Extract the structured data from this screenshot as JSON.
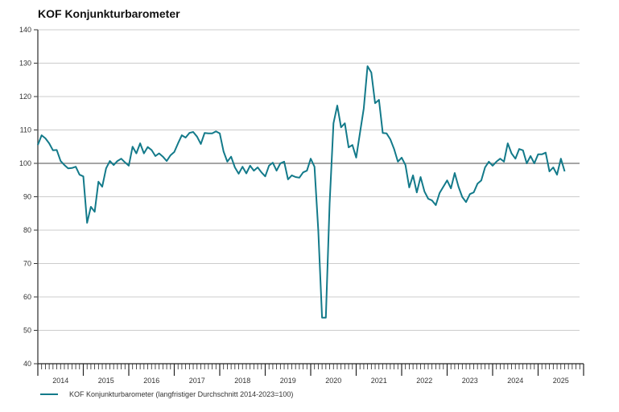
{
  "chart_data": {
    "type": "line",
    "title": "KOF Konjunkturbarometer",
    "xlabel": "",
    "ylabel": "",
    "ylim": [
      40,
      140
    ],
    "yticks": [
      40,
      50,
      60,
      70,
      80,
      90,
      100,
      110,
      120,
      130,
      140
    ],
    "xticks": [
      "2014",
      "2015",
      "2016",
      "2017",
      "2018",
      "2019",
      "2020",
      "2021",
      "2022",
      "2023",
      "2024",
      "2025"
    ],
    "x_start": "2014-01",
    "x_frequency": "monthly",
    "reference_line": 100,
    "grid": true,
    "legend_position": "bottom-left",
    "series": [
      {
        "name": "KOF Konjunkturbarometer (langfristiger Durchschnitt 2014-2023=100)",
        "color": "#137a8a",
        "values": [
          105.5,
          108.4,
          107.5,
          106,
          103.9,
          104,
          100.7,
          99.5,
          98.5,
          98.6,
          99,
          96.6,
          96.1,
          82.2,
          87,
          85.5,
          94.5,
          93,
          98.5,
          100.7,
          99.5,
          100.7,
          101.4,
          100.3,
          99.3,
          105,
          103,
          106,
          103,
          104.9,
          104,
          102.2,
          103,
          102,
          100.7,
          102.4,
          103.4,
          106,
          108.4,
          107.7,
          109.1,
          109.4,
          108,
          105.8,
          109.1,
          109,
          109,
          109.6,
          109,
          103.6,
          100.5,
          102,
          98.8,
          96.9,
          99,
          97,
          99.3,
          97.8,
          98.8,
          97.3,
          96.1,
          99.3,
          100.2,
          97.8,
          100,
          100.5,
          95.2,
          96.4,
          95.9,
          95.7,
          97.3,
          97.8,
          101.4,
          99,
          80,
          53.8,
          53.8,
          88,
          112,
          117.3,
          110.8,
          112,
          104.8,
          105.5,
          101.7,
          109.1,
          116.4,
          129.1,
          127.2,
          118,
          119,
          109.1,
          109,
          107.2,
          104.3,
          100.5,
          101.7,
          99.5,
          92.8,
          96.4,
          91.3,
          95.9,
          91.6,
          89.4,
          88.9,
          87.5,
          91.1,
          93,
          94.9,
          92.5,
          97.1,
          93,
          89.9,
          88.4,
          90.8,
          91.3,
          93.9,
          94.9,
          98.8,
          100.5,
          99.3,
          100.5,
          101.4,
          100.5,
          106,
          103,
          101.4,
          104.3,
          103.9,
          100,
          102.2,
          100,
          102.7,
          102.7,
          103.2,
          97.6,
          98.8,
          96.6,
          101.4,
          97.6
        ]
      }
    ]
  }
}
